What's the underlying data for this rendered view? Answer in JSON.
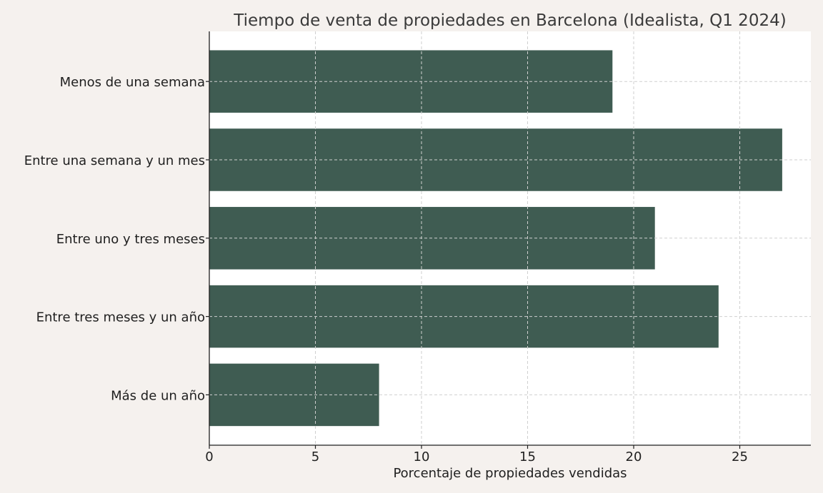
{
  "chart_data": {
    "type": "bar",
    "orientation": "horizontal",
    "title": "Tiempo de venta de propiedades en Barcelona (Idealista, Q1 2024)",
    "xlabel": "Porcentaje de propiedades vendidas",
    "ylabel": "",
    "categories": [
      "Menos de una semana",
      "Entre una semana y un mes",
      "Entre uno y tres meses",
      "Entre tres meses y un año",
      "Más de un año"
    ],
    "values": [
      19,
      27,
      21,
      24,
      8
    ],
    "xlim": [
      0,
      28.35
    ],
    "xticks": [
      0,
      5,
      10,
      15,
      20,
      25
    ],
    "grid": true,
    "bar_color": "#3f5c52",
    "plot_background": "#ffffff",
    "figure_background": "#f5f1ee"
  }
}
